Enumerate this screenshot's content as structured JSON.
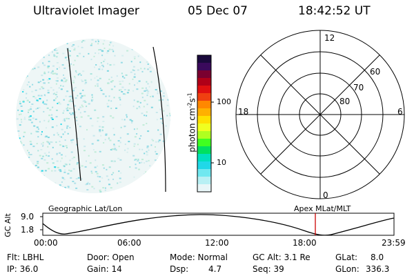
{
  "header": {
    "instrument": "Ultraviolet Imager",
    "date": "05 Dec 07",
    "time": "18:42:52 UT"
  },
  "colorbar": {
    "ticks": [
      "100",
      "10"
    ],
    "unit_label": "photon cm",
    "unit_exp1": "-2",
    "unit_mid": "s",
    "unit_exp2": "-1",
    "colors": [
      "#1a0a3c",
      "#3a0a5c",
      "#7a0030",
      "#b00018",
      "#e01010",
      "#f04010",
      "#ff8800",
      "#ffb000",
      "#ffe000",
      "#f0ff20",
      "#b0ff20",
      "#40ff20",
      "#00e060",
      "#00e0c0",
      "#20d8e8",
      "#70e8f0",
      "#b8f0f4",
      "#e8f6f8"
    ]
  },
  "polar": {
    "mlt_labels": [
      "12",
      "18",
      "6",
      "0"
    ],
    "lat_labels": [
      "60",
      "70",
      "80"
    ]
  },
  "orbit": {
    "y_axis_label": "GC Alt",
    "y_ticks": [
      "9.0",
      "1.8"
    ],
    "left_title": "Geographic Lat/Lon",
    "right_title": "Apex  MLat/MLT",
    "x_ticks": [
      "00:00",
      "06:00",
      "12:00",
      "18:00",
      "23:59"
    ]
  },
  "info": {
    "flt": "Flt: LBHL",
    "ip": "IP: 36.0",
    "door": "Door: Open",
    "gain": "Gain: 14",
    "mode": "Mode: Normal",
    "dsp_label": "Dsp:",
    "dsp_value": "4.7",
    "gcalt": "GC Alt: 3.1 Re",
    "seq": "Seq: 39",
    "glat_label": "GLat:",
    "glat_value": "8.0",
    "glon_label": "GLon:",
    "glon_value": "336.3"
  }
}
